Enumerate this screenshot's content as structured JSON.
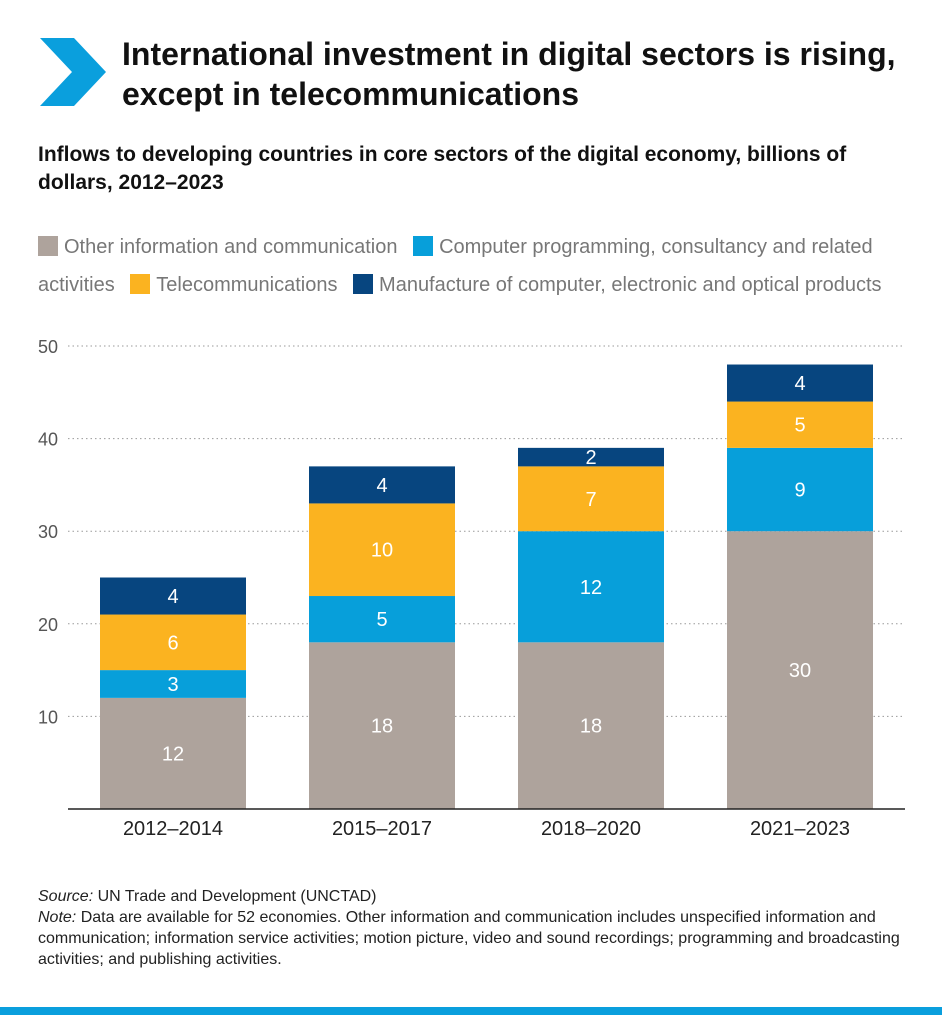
{
  "title": "International investment in digital sectors is rising, except in telecommunications",
  "subtitle": "Inflows to developing countries in core sectors of the digital economy, billions of dollars, 2012–2023",
  "colors": {
    "accent": "#0a9fdd",
    "text": "#111111",
    "muted": "#777777"
  },
  "chart_data": {
    "type": "bar",
    "stacked": true,
    "title": "",
    "xlabel": "",
    "ylabel": "",
    "ylim": [
      0,
      50
    ],
    "yticks": [
      10,
      20,
      30,
      40,
      50
    ],
    "grid": true,
    "legend_position": "top",
    "categories": [
      "2012–2014",
      "2015–2017",
      "2018–2020",
      "2021–2023"
    ],
    "series": [
      {
        "name": "Other information and communication",
        "color": "#aea39c",
        "values": [
          12,
          18,
          18,
          30
        ]
      },
      {
        "name": "Computer programming, consultancy and related activities",
        "color": "#079fda",
        "values": [
          3,
          5,
          12,
          9
        ]
      },
      {
        "name": "Telecommunications",
        "color": "#fbb320",
        "values": [
          6,
          10,
          7,
          5
        ]
      },
      {
        "name": "Manufacture of computer, electronic and optical products",
        "color": "#07457f",
        "values": [
          4,
          4,
          2,
          4
        ]
      }
    ]
  },
  "notes": {
    "source_label": "Source:",
    "source_text": " UN Trade and Development (UNCTAD)",
    "note_label": "Note:",
    "note_text": " Data are available for 52 economies. Other information and communication includes unspecified information and communication; information service activities; motion picture, video and sound recordings; programming and broadcasting activities; and publishing activities."
  }
}
